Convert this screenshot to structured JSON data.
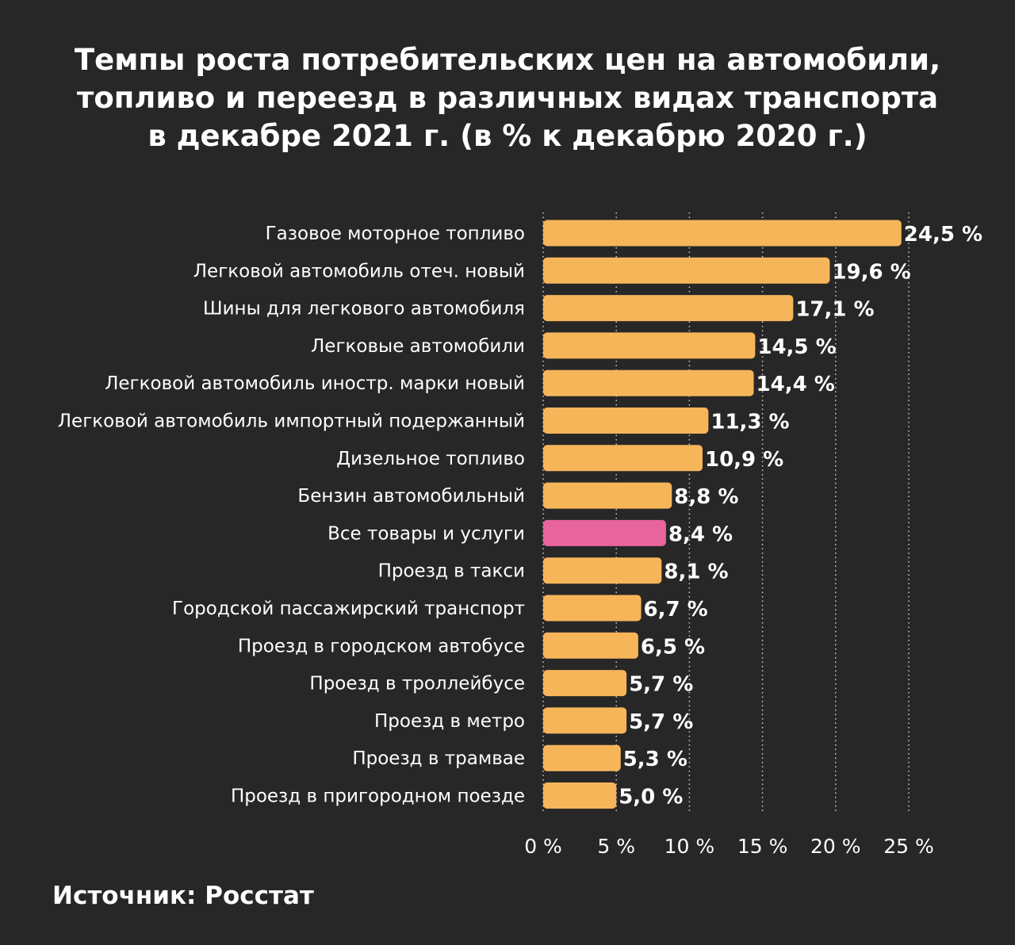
{
  "chart_data": {
    "type": "bar",
    "orientation": "horizontal",
    "title_lines": [
      "Темпы роста потребительских цен на автомобили,",
      "топливо и переезд в различных видах транспорта",
      "в декабре 2021 г. (в % к декабрю 2020 г.)"
    ],
    "categories": [
      "Газовое моторное топливо",
      "Легковой автомобиль отеч. новый",
      "Шины для легкового автомобиля",
      "Легковые автомобили",
      "Легковой автомобиль иностр. марки новый",
      "Легковой автомобиль импортный подержанный",
      "Дизельное топливо",
      "Бензин автомобильный",
      "Все товары и услуги",
      "Проезд в такси",
      "Городской пассажирский транспорт",
      "Проезд в городском автобусе",
      "Проезд в троллейбусе",
      "Проезд в метро",
      "Проезд в трамвае",
      "Проезд в пригородном поезде"
    ],
    "values": [
      24.5,
      19.6,
      17.1,
      14.5,
      14.4,
      11.3,
      10.9,
      8.8,
      8.4,
      8.1,
      6.7,
      6.5,
      5.7,
      5.7,
      5.3,
      5.0
    ],
    "value_labels": [
      "24,5 %",
      "19,6 %",
      "17,1 %",
      "14,5 %",
      "14,4 %",
      "11,3 %",
      "10,9 %",
      "8,8 %",
      "8,4 %",
      "8,1 %",
      "6,7 %",
      "6,5 %",
      "5,7 %",
      "5,7 %",
      "5,3 %",
      "5,0 %"
    ],
    "highlight_index": 8,
    "xlim": [
      0,
      25
    ],
    "xticks": [
      0,
      5,
      10,
      15,
      20,
      25
    ],
    "xtick_labels": [
      "0 %",
      "5 %",
      "10 %",
      "15 %",
      "20 %",
      "25 %"
    ],
    "grid": "vertical-dotted",
    "colors": {
      "bar": "#F7B55A",
      "highlight": "#E8649C",
      "grid": "#cfcfcf"
    }
  },
  "source": "Источник: Росстат"
}
